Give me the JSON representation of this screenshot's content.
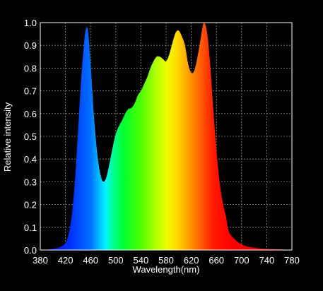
{
  "chart_data": {
    "type": "area",
    "title": "",
    "xlabel": "Wavelength(nm)",
    "ylabel": "Relative intensity",
    "xlim": [
      380,
      780
    ],
    "ylim": [
      0,
      1
    ],
    "x_ticks": [
      380,
      420,
      460,
      500,
      540,
      580,
      620,
      660,
      700,
      740,
      780
    ],
    "x_tick_labels": [
      "380",
      "420",
      "460",
      "500",
      "540",
      "580",
      "620",
      "660",
      "700",
      "740",
      "780"
    ],
    "y_ticks": [
      0,
      0.1,
      0.2,
      0.3,
      0.4,
      0.5,
      0.6,
      0.7,
      0.8,
      0.9,
      1.0
    ],
    "y_tick_labels": [
      "0.0",
      "0.1",
      "0.2",
      "0.3",
      "0.4",
      "0.5",
      "0.6",
      "0.7",
      "0.8",
      "0.9",
      "1.0"
    ],
    "grid": true,
    "fill": "visible-spectrum-gradient",
    "colors": {
      "background": "#000000",
      "plot_border": "#ffffff",
      "grid": "#8a8a8a",
      "text": "#ffffff"
    },
    "series": [
      {
        "x": [
          380,
          390,
          400,
          410,
          420,
          425,
          430,
          435,
          440,
          445,
          450,
          453,
          456,
          460,
          465,
          470,
          475,
          480,
          485,
          490,
          495,
          500,
          505,
          510,
          515,
          520,
          525,
          530,
          535,
          540,
          545,
          550,
          555,
          560,
          565,
          570,
          575,
          580,
          585,
          590,
          595,
          600,
          605,
          610,
          615,
          620,
          625,
          630,
          635,
          640,
          645,
          650,
          655,
          660,
          665,
          670,
          675,
          680,
          690,
          700,
          710,
          720,
          730,
          740,
          750,
          760,
          770,
          780
        ],
        "y": [
          0.0,
          0.002,
          0.005,
          0.012,
          0.03,
          0.07,
          0.15,
          0.3,
          0.52,
          0.75,
          0.92,
          0.975,
          0.96,
          0.82,
          0.6,
          0.44,
          0.34,
          0.3,
          0.32,
          0.38,
          0.45,
          0.51,
          0.545,
          0.57,
          0.6,
          0.62,
          0.625,
          0.645,
          0.68,
          0.7,
          0.73,
          0.76,
          0.8,
          0.83,
          0.85,
          0.85,
          0.84,
          0.83,
          0.86,
          0.91,
          0.955,
          0.965,
          0.94,
          0.9,
          0.82,
          0.78,
          0.79,
          0.85,
          0.93,
          1.0,
          0.96,
          0.82,
          0.62,
          0.44,
          0.3,
          0.21,
          0.15,
          0.08,
          0.045,
          0.025,
          0.015,
          0.01,
          0.007,
          0.005,
          0.004,
          0.003,
          0.002,
          0.0
        ]
      }
    ]
  }
}
